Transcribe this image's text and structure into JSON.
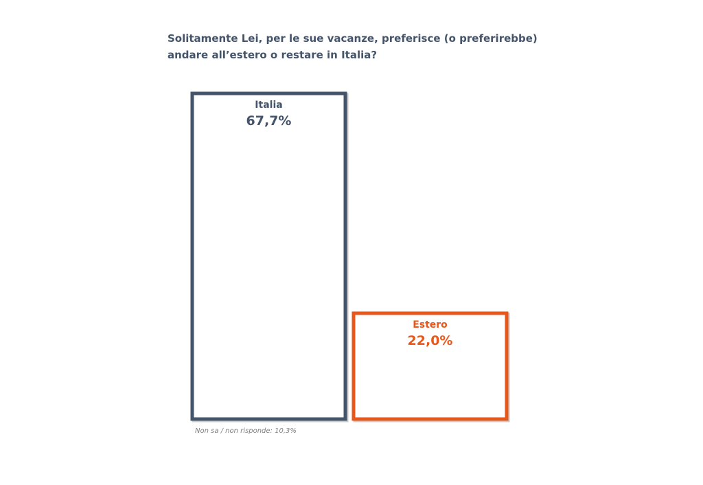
{
  "title_lines": [
    "Solitamente Lei, per le sue vacanze, preferisce (o preferirebbe)",
    "andare all’estero o restare in Italia?"
  ],
  "note": "Non sa / non risponde: 10,3%",
  "colors": {
    "title": "#44546a",
    "italia": "#44546a",
    "estero": "#e8571b",
    "note": "#7f7f7f"
  },
  "chart_data": {
    "type": "bar",
    "title": "Solitamente Lei, per le sue vacanze, preferisce (o preferirebbe) andare all’estero o restare in Italia?",
    "categories": [
      "Italia",
      "Estero"
    ],
    "values": [
      67.7,
      22.0
    ],
    "value_labels": [
      "67,7%",
      "22,0%"
    ],
    "bar_colors": [
      "#44546a",
      "#e8571b"
    ],
    "xlabel": "",
    "ylabel": "",
    "grid": false,
    "legend": "none"
  }
}
